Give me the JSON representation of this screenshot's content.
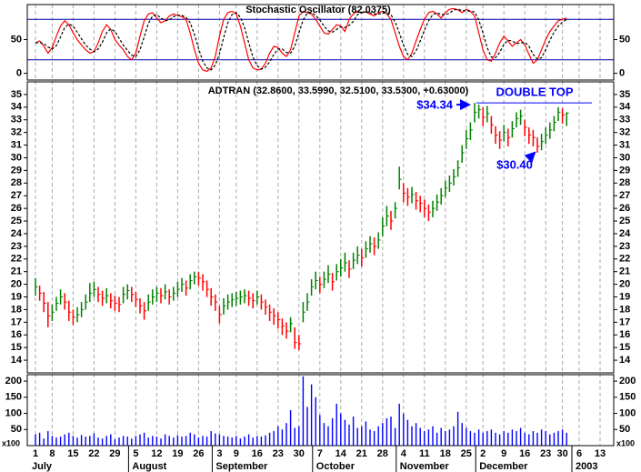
{
  "chart_data": [
    {
      "type": "line",
      "title": "Stochastic Oscillator (82.0375)",
      "ylim": [
        -10,
        102
      ],
      "yticks": [
        0,
        50
      ],
      "levels": [
        20,
        80
      ],
      "level_color": "#0000aa",
      "series": [
        {
          "color": "#ff0000",
          "dashed": false,
          "values": [
            45,
            48,
            40,
            30,
            38,
            55,
            70,
            78,
            72,
            60,
            50,
            42,
            35,
            30,
            32,
            45,
            62,
            72,
            65,
            50,
            42,
            35,
            25,
            20,
            30,
            55,
            78,
            88,
            90,
            82,
            75,
            78,
            85,
            88,
            86,
            84,
            80,
            60,
            35,
            15,
            5,
            3,
            8,
            25,
            55,
            80,
            90,
            92,
            88,
            70,
            45,
            20,
            8,
            5,
            6,
            15,
            30,
            40,
            38,
            30,
            25,
            35,
            60,
            85,
            92,
            90,
            88,
            80,
            70,
            60,
            58,
            65,
            72,
            70,
            62,
            80,
            88,
            92,
            90,
            91,
            88,
            85,
            90,
            92,
            88,
            80,
            60,
            40,
            25,
            20,
            30,
            48,
            65,
            80,
            90,
            92,
            88,
            82,
            90,
            95,
            96,
            94,
            90,
            95,
            92,
            85,
            60,
            35,
            20,
            18,
            30,
            45,
            55,
            48,
            40,
            45,
            50,
            42,
            28,
            15,
            20,
            35,
            50,
            62,
            70,
            78,
            80,
            82.04,
            null,
            null,
            null,
            null,
            null,
            null,
            null,
            null,
            null,
            null,
            null
          ]
        },
        {
          "color": "#000000",
          "dashed": true,
          "values": [
            45,
            46,
            44,
            39,
            36,
            41,
            54,
            68,
            73,
            70,
            61,
            51,
            42,
            36,
            32,
            36,
            46,
            60,
            66,
            62,
            52,
            42,
            34,
            27,
            25,
            35,
            54,
            74,
            85,
            87,
            82,
            78,
            79,
            84,
            86,
            86,
            83,
            75,
            58,
            37,
            18,
            8,
            5,
            12,
            29,
            53,
            75,
            87,
            90,
            83,
            68,
            45,
            24,
            11,
            6,
            9,
            17,
            28,
            36,
            36,
            31,
            30,
            40,
            60,
            79,
            89,
            90,
            86,
            79,
            70,
            63,
            61,
            65,
            69,
            68,
            71,
            77,
            87,
            90,
            91,
            90,
            88,
            88,
            89,
            90,
            87,
            76,
            60,
            42,
            28,
            25,
            33,
            48,
            64,
            78,
            87,
            90,
            87,
            87,
            89,
            94,
            95,
            93,
            93,
            92,
            91,
            79,
            60,
            38,
            24,
            23,
            31,
            43,
            49,
            48,
            44,
            45,
            46,
            40,
            28,
            21,
            23,
            35,
            49,
            61,
            70,
            76,
            80,
            null,
            null,
            null,
            null,
            null,
            null,
            null,
            null,
            null,
            null,
            null
          ]
        }
      ]
    },
    {
      "type": "ohlc",
      "title": "ADTRAN (32.8600, 33.5990, 32.5100, 33.5300, +0.63000)",
      "ylim": [
        13,
        36
      ],
      "yticks": [
        14,
        15,
        16,
        17,
        18,
        19,
        20,
        21,
        22,
        23,
        24,
        25,
        26,
        27,
        28,
        29,
        30,
        31,
        32,
        33,
        34,
        35
      ],
      "up_color": "#008000",
      "down_color": "#ff0000",
      "high": [
        20.5,
        19.9,
        19.4,
        18.6,
        18.4,
        19.0,
        19.6,
        19.3,
        18.7,
        18.0,
        18.2,
        18.6,
        19.2,
        20.1,
        20.2,
        19.8,
        19.5,
        19.7,
        19.3,
        19.1,
        19.0,
        19.8,
        20.0,
        19.8,
        19.4,
        18.9,
        18.6,
        19.2,
        19.6,
        19.8,
        19.7,
        20.0,
        19.6,
        19.8,
        20.2,
        20.5,
        20.3,
        20.8,
        21.0,
        21.0,
        20.8,
        20.3,
        19.7,
        19.2,
        18.3,
        18.9,
        19.2,
        19.3,
        19.4,
        19.5,
        19.6,
        19.5,
        19.3,
        19.5,
        19.2,
        18.8,
        18.4,
        18.1,
        17.8,
        17.3,
        17.0,
        17.4,
        16.6,
        16.0,
        18.6,
        19.3,
        20.4,
        21.0,
        20.6,
        21.0,
        21.5,
        20.9,
        21.6,
        22.0,
        22.5,
        21.9,
        22.5,
        23.0,
        22.8,
        23.4,
        23.8,
        23.7,
        24.1,
        25.3,
        26.2,
        25.8,
        26.5,
        29.3,
        28.0,
        27.6,
        27.7,
        27.3,
        27.0,
        26.7,
        26.3,
        26.6,
        27.1,
        27.6,
        28.2,
        28.6,
        29.1,
        29.8,
        31.0,
        32.2,
        32.8,
        34.34,
        34.2,
        34.0,
        34.1,
        33.3,
        32.5,
        32.1,
        32.6,
        32.3,
        32.9,
        33.6,
        33.8,
        33.0,
        32.4,
        32.2,
        31.6,
        31.9,
        32.4,
        32.8,
        33.3,
        34.0,
        33.9,
        33.599,
        null,
        null,
        null,
        null,
        null,
        null,
        null,
        null,
        null,
        null,
        null
      ],
      "low": [
        19.1,
        18.7,
        17.8,
        16.6,
        17.1,
        17.9,
        18.4,
        18.0,
        17.1,
        16.8,
        17.0,
        17.4,
        18.0,
        18.6,
        19.0,
        18.6,
        18.3,
        18.5,
        18.1,
        17.9,
        17.8,
        18.5,
        18.8,
        18.6,
        18.2,
        17.7,
        17.2,
        17.9,
        18.4,
        18.6,
        18.5,
        18.8,
        18.4,
        18.7,
        19.0,
        19.4,
        19.1,
        19.6,
        20.0,
        19.9,
        19.5,
        19.0,
        18.3,
        17.9,
        16.9,
        17.6,
        18.0,
        18.2,
        18.3,
        18.4,
        18.5,
        18.3,
        18.1,
        18.4,
        18.0,
        17.6,
        17.1,
        16.8,
        16.5,
        16.0,
        15.7,
        16.2,
        14.9,
        14.8,
        17.0,
        17.9,
        19.1,
        19.6,
        19.3,
        19.7,
        20.1,
        19.5,
        20.3,
        20.6,
        21.0,
        20.5,
        21.2,
        21.6,
        21.4,
        22.1,
        22.5,
        22.3,
        22.8,
        23.8,
        24.6,
        24.3,
        25.2,
        27.5,
        26.5,
        26.2,
        26.4,
        25.9,
        25.7,
        25.3,
        25.0,
        25.3,
        25.8,
        26.3,
        26.9,
        27.3,
        27.8,
        28.5,
        29.6,
        30.7,
        31.4,
        32.8,
        33.1,
        32.5,
        32.8,
        31.9,
        31.1,
        30.7,
        31.3,
        30.9,
        31.6,
        32.4,
        32.6,
        31.7,
        31.1,
        30.9,
        30.4,
        30.6,
        31.1,
        31.5,
        32.1,
        32.9,
        32.7,
        32.51,
        null,
        null,
        null,
        null,
        null,
        null,
        null,
        null,
        null,
        null,
        null
      ],
      "close": [
        19.8,
        19.3,
        18.5,
        17.5,
        17.8,
        18.5,
        19.0,
        18.6,
        17.8,
        17.4,
        17.6,
        18.0,
        18.6,
        19.3,
        19.6,
        19.2,
        18.9,
        19.1,
        18.7,
        18.5,
        18.4,
        19.2,
        19.5,
        19.2,
        18.8,
        18.3,
        17.9,
        18.6,
        19.0,
        19.3,
        19.1,
        19.4,
        19.0,
        19.3,
        19.6,
        20.0,
        19.7,
        20.3,
        20.6,
        20.5,
        20.2,
        19.6,
        19.0,
        18.6,
        17.6,
        18.3,
        18.6,
        18.8,
        18.9,
        19.0,
        19.1,
        18.9,
        18.7,
        19.0,
        18.6,
        18.2,
        17.8,
        17.5,
        17.2,
        16.7,
        16.3,
        16.9,
        15.4,
        15.3,
        17.8,
        18.6,
        19.8,
        20.3,
        20.0,
        20.4,
        20.8,
        20.2,
        21.0,
        21.3,
        21.7,
        21.2,
        21.9,
        22.3,
        22.1,
        22.8,
        23.2,
        23.0,
        23.5,
        24.6,
        25.4,
        25.0,
        26.0,
        28.3,
        27.2,
        26.9,
        27.1,
        26.6,
        26.4,
        26.0,
        25.7,
        26.0,
        26.5,
        27.0,
        27.6,
        28.0,
        28.5,
        29.2,
        30.4,
        31.5,
        32.2,
        33.6,
        33.8,
        33.2,
        33.5,
        32.6,
        31.8,
        31.4,
        32.0,
        31.6,
        32.3,
        33.1,
        33.3,
        32.4,
        31.8,
        31.6,
        30.9,
        31.3,
        31.8,
        32.2,
        32.8,
        33.6,
        33.4,
        33.53,
        null,
        null,
        null,
        null,
        null,
        null,
        null,
        null,
        null,
        null,
        null
      ],
      "annotation_color": "#0000ff",
      "annotations": [
        {
          "label": "$34.34",
          "value": 34.34
        },
        {
          "label": "$30.40",
          "value": 30.4
        },
        {
          "label": "DOUBLE TOP"
        }
      ]
    },
    {
      "type": "bar",
      "ylim": [
        0,
        220
      ],
      "yticks": [
        50,
        100,
        150,
        200
      ],
      "unit_label": "x100",
      "color": "#0000ff",
      "values": [
        35,
        40,
        22,
        45,
        30,
        25,
        28,
        35,
        40,
        30,
        25,
        33,
        28,
        30,
        38,
        25,
        22,
        30,
        35,
        20,
        25,
        30,
        28,
        22,
        30,
        35,
        40,
        25,
        30,
        28,
        22,
        35,
        30,
        25,
        32,
        28,
        30,
        40,
        35,
        25,
        30,
        28,
        45,
        38,
        35,
        30,
        28,
        25,
        30,
        22,
        28,
        35,
        25,
        30,
        28,
        32,
        40,
        45,
        60,
        50,
        70,
        110,
        55,
        60,
        215,
        120,
        190,
        150,
        95,
        70,
        60,
        85,
        130,
        100,
        80,
        65,
        90,
        55,
        60,
        75,
        50,
        45,
        60,
        70,
        85,
        90,
        55,
        130,
        100,
        80,
        60,
        70,
        55,
        45,
        50,
        60,
        40,
        55,
        45,
        50,
        60,
        105,
        70,
        55,
        45,
        40,
        50,
        40,
        45,
        50,
        40,
        35,
        45,
        40,
        50,
        45,
        55,
        40,
        35,
        45,
        40,
        50,
        45,
        35,
        40,
        45,
        50,
        40,
        null,
        null,
        null,
        null,
        null,
        null,
        null,
        null,
        null,
        null,
        null
      ],
      "categories": [
        1,
        null,
        null,
        null,
        8,
        null,
        null,
        null,
        null,
        15,
        null,
        null,
        null,
        null,
        22,
        null,
        null,
        null,
        null,
        29,
        null,
        null,
        null,
        null,
        5,
        null,
        null,
        null,
        null,
        12,
        null,
        null,
        null,
        null,
        19,
        null,
        null,
        null,
        null,
        26,
        null,
        null,
        null,
        null,
        3,
        null,
        null,
        null,
        9,
        null,
        null,
        null,
        null,
        16,
        null,
        null,
        null,
        null,
        23,
        null,
        null,
        null,
        null,
        30,
        null,
        null,
        null,
        null,
        7,
        null,
        null,
        null,
        null,
        14,
        null,
        null,
        null,
        null,
        21,
        null,
        null,
        null,
        null,
        28,
        null,
        null,
        null,
        null,
        4,
        null,
        null,
        null,
        null,
        11,
        null,
        null,
        null,
        null,
        18,
        null,
        null,
        null,
        null,
        25,
        null,
        null,
        null,
        2,
        null,
        null,
        null,
        null,
        9,
        null,
        null,
        null,
        null,
        16,
        null,
        null,
        null,
        null,
        23,
        null,
        null,
        null,
        30,
        null,
        null,
        null,
        6,
        null,
        null,
        null,
        null,
        13,
        null,
        null,
        null
      ],
      "month_labels": [
        "July",
        "August",
        "September",
        "October",
        "November",
        "December",
        "2003"
      ]
    }
  ]
}
